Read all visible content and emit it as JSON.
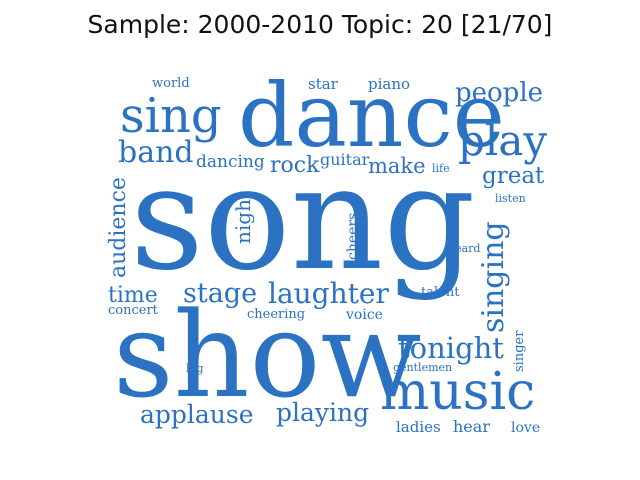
{
  "title": "Sample: 2000-2010 Topic: 20 [21/70]",
  "word_color": "#2b72c2",
  "words": [
    "song",
    "show",
    "dance",
    "sing",
    "music",
    "play",
    "people",
    "laughter",
    "singing",
    "band",
    "stage",
    "applause",
    "tonight",
    "playing",
    "great",
    "audience",
    "time",
    "rock",
    "make",
    "dancing",
    "guitar",
    "night",
    "star",
    "piano",
    "world",
    "concert",
    "cheering",
    "voice",
    "talent",
    "cheers",
    "ladies",
    "hear",
    "love",
    "gentlemen",
    "singer",
    "listen",
    "heard",
    "life",
    "big"
  ]
}
